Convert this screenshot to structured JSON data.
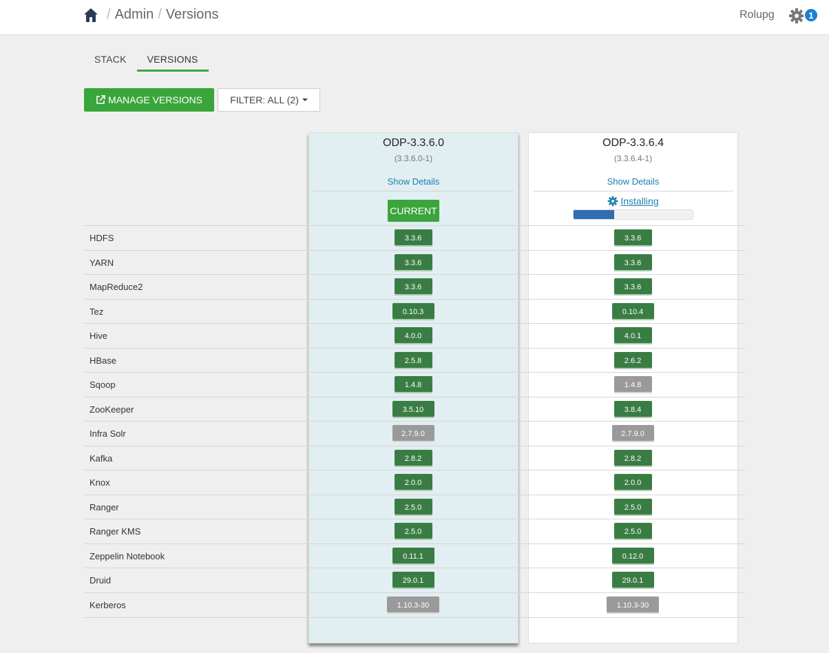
{
  "breadcrumb": {
    "home_icon": "home-icon",
    "admin": "Admin",
    "versions": "Versions",
    "separator": "/"
  },
  "header": {
    "user": "Rolupg",
    "gear_icon": "gear-icon",
    "notification_count": "1"
  },
  "tabs": [
    {
      "label": "STACK",
      "active": false
    },
    {
      "label": "VERSIONS",
      "active": true
    }
  ],
  "toolbar": {
    "manage_label": "MANAGE VERSIONS",
    "filter_label": "FILTER: ALL (2)"
  },
  "colors": {
    "accent_green": "#3aa53a",
    "version_green": "#3a7d44",
    "version_gray": "#9a9a9a",
    "link_blue": "#1a80b0",
    "progress_blue": "#2f6db4"
  },
  "versions": [
    {
      "name": "ODP-3.3.6.0",
      "sub": "(3.3.6.0-1)",
      "details": "Show Details",
      "status": "CURRENT"
    },
    {
      "name": "ODP-3.3.6.4",
      "sub": "(3.3.6.4-1)",
      "details": "Show Details",
      "status": "Installing",
      "progress": 0.34
    }
  ],
  "services": [
    {
      "name": "HDFS",
      "v1": "3.3.6",
      "v1_state": "green",
      "v2": "3.3.6",
      "v2_state": "green"
    },
    {
      "name": "YARN",
      "v1": "3.3.6",
      "v1_state": "green",
      "v2": "3.3.6",
      "v2_state": "green"
    },
    {
      "name": "MapReduce2",
      "v1": "3.3.6",
      "v1_state": "green",
      "v2": "3.3.6",
      "v2_state": "green"
    },
    {
      "name": "Tez",
      "v1": "0.10.3",
      "v1_state": "green",
      "v2": "0.10.4",
      "v2_state": "green"
    },
    {
      "name": "Hive",
      "v1": "4.0.0",
      "v1_state": "green",
      "v2": "4.0.1",
      "v2_state": "green"
    },
    {
      "name": "HBase",
      "v1": "2.5.8",
      "v1_state": "green",
      "v2": "2.6.2",
      "v2_state": "green"
    },
    {
      "name": "Sqoop",
      "v1": "1.4.8",
      "v1_state": "green",
      "v2": "1.4.8",
      "v2_state": "gray"
    },
    {
      "name": "ZooKeeper",
      "v1": "3.5.10",
      "v1_state": "green",
      "v2": "3.8.4",
      "v2_state": "green"
    },
    {
      "name": "Infra Solr",
      "v1": "2.7.9.0",
      "v1_state": "gray",
      "v2": "2.7.9.0",
      "v2_state": "gray"
    },
    {
      "name": "Kafka",
      "v1": "2.8.2",
      "v1_state": "green",
      "v2": "2.8.2",
      "v2_state": "green"
    },
    {
      "name": "Knox",
      "v1": "2.0.0",
      "v1_state": "green",
      "v2": "2.0.0",
      "v2_state": "green"
    },
    {
      "name": "Ranger",
      "v1": "2.5.0",
      "v1_state": "green",
      "v2": "2.5.0",
      "v2_state": "green"
    },
    {
      "name": "Ranger KMS",
      "v1": "2.5.0",
      "v1_state": "green",
      "v2": "2.5.0",
      "v2_state": "green"
    },
    {
      "name": "Zeppelin Notebook",
      "v1": "0.11.1",
      "v1_state": "green",
      "v2": "0.12.0",
      "v2_state": "green"
    },
    {
      "name": "Druid",
      "v1": "29.0.1",
      "v1_state": "green",
      "v2": "29.0.1",
      "v2_state": "green"
    },
    {
      "name": "Kerberos",
      "v1": "1.10.3-30",
      "v1_state": "gray",
      "v2": "1.10.3-30",
      "v2_state": "gray"
    }
  ]
}
